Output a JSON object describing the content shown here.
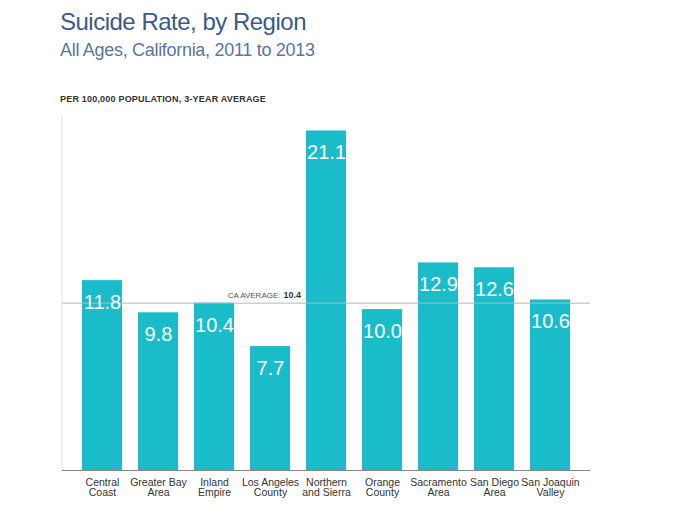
{
  "chart_data": {
    "type": "bar",
    "title": "Suicide Rate, by Region",
    "subtitle": "All Ages, California, 2011 to 2013",
    "y_label": "PER 100,000 POPULATION, 3-YEAR AVERAGE",
    "categories": [
      "Central Coast",
      "Greater Bay Area",
      "Inland Empire",
      "Los Angeles County",
      "Northern and Sierra",
      "Orange County",
      "Sacramento Area",
      "San Diego Area",
      "San Joaquin Valley"
    ],
    "values": [
      11.8,
      9.8,
      10.4,
      7.7,
      21.1,
      10.0,
      12.9,
      12.6,
      10.6
    ],
    "value_labels": [
      "11.8",
      "9.8",
      "10.4",
      "7.7",
      "21.1",
      "10.0",
      "12.9",
      "12.6",
      "10.6"
    ],
    "color": "#1bbcca",
    "ylim": [
      0,
      22
    ],
    "yticks": [],
    "grid": false,
    "data_labels": true,
    "tick_labels": "x",
    "reference_line": {
      "label": "CA AVERAGE:",
      "value": 10.4
    }
  }
}
